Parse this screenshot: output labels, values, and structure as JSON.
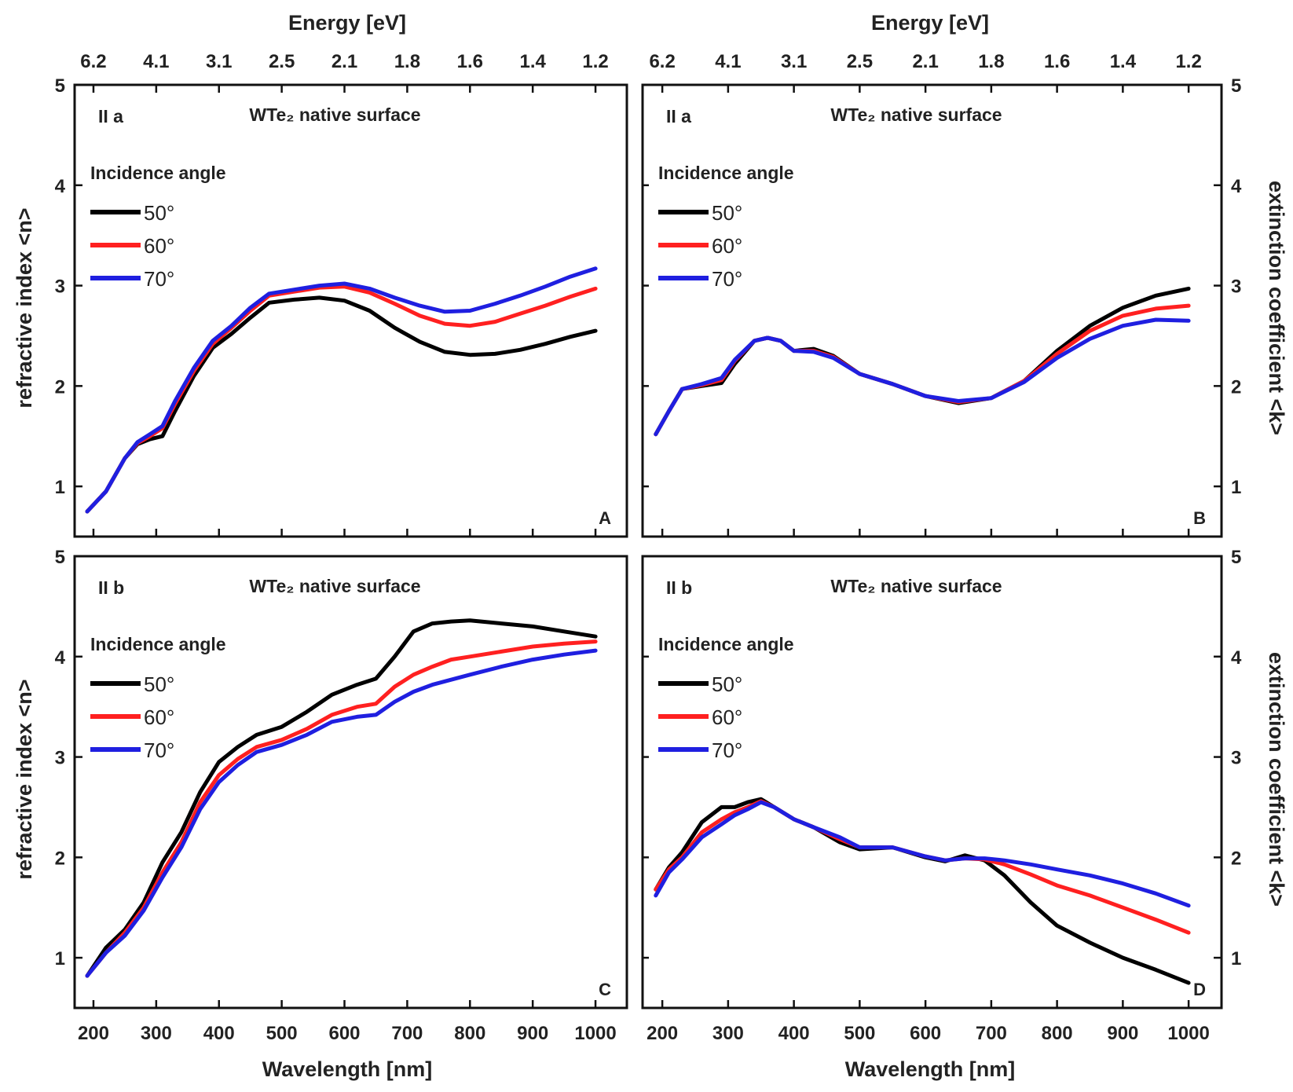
{
  "figure": {
    "top_axis_title": "Energy [eV]",
    "bottom_axis_title": "Wavelength [nm]",
    "left_axis_title": "refractive index <n>",
    "right_axis_title": "extinction coefficient <k>",
    "legend_title": "Incidence angle",
    "material_title": "WTe₂ native surface",
    "colors": {
      "50": "#000000",
      "60": "#ff2020",
      "70": "#1f1fe0"
    }
  },
  "chart_data": [
    {
      "id": "A",
      "type": "line",
      "panel_label": "II a",
      "letter": "A",
      "title": "WTe₂ native surface",
      "xlabel": "Wavelength [nm]",
      "ylabel": "refractive index <n>",
      "top_xlabel": "Energy [eV]",
      "xlim": [
        170,
        1050
      ],
      "ylim": [
        0.5,
        5
      ],
      "xticks": [
        200,
        300,
        400,
        500,
        600,
        700,
        800,
        900,
        1000
      ],
      "yticks": [
        1,
        2,
        3,
        4,
        5
      ],
      "top_ticks": [
        {
          "wavelength": 200,
          "label": "6.2"
        },
        {
          "wavelength": 300,
          "label": "4.1"
        },
        {
          "wavelength": 400,
          "label": "3.1"
        },
        {
          "wavelength": 500,
          "label": "2.5"
        },
        {
          "wavelength": 600,
          "label": "2.1"
        },
        {
          "wavelength": 700,
          "label": "1.8"
        },
        {
          "wavelength": 800,
          "label": "1.6"
        },
        {
          "wavelength": 900,
          "label": "1.4"
        },
        {
          "wavelength": 1000,
          "label": "1.2"
        }
      ],
      "legend_title": "Incidence angle",
      "series": [
        {
          "name": "50°",
          "x": [
            190,
            220,
            250,
            270,
            290,
            310,
            330,
            360,
            390,
            420,
            450,
            480,
            520,
            560,
            600,
            640,
            680,
            720,
            760,
            800,
            840,
            880,
            920,
            960,
            1000
          ],
          "y": [
            0.75,
            0.95,
            1.28,
            1.42,
            1.47,
            1.5,
            1.75,
            2.1,
            2.38,
            2.52,
            2.68,
            2.83,
            2.86,
            2.88,
            2.85,
            2.75,
            2.58,
            2.44,
            2.34,
            2.31,
            2.32,
            2.36,
            2.42,
            2.49,
            2.55
          ]
        },
        {
          "name": "60°",
          "x": [
            190,
            220,
            250,
            270,
            290,
            310,
            330,
            360,
            390,
            420,
            450,
            480,
            520,
            560,
            600,
            640,
            680,
            720,
            760,
            800,
            840,
            880,
            920,
            960,
            1000
          ],
          "y": [
            0.75,
            0.95,
            1.28,
            1.43,
            1.5,
            1.58,
            1.82,
            2.15,
            2.42,
            2.58,
            2.75,
            2.9,
            2.94,
            2.98,
            2.99,
            2.93,
            2.82,
            2.7,
            2.62,
            2.6,
            2.64,
            2.72,
            2.8,
            2.89,
            2.97
          ]
        },
        {
          "name": "70°",
          "x": [
            190,
            220,
            250,
            270,
            290,
            310,
            330,
            360,
            390,
            420,
            450,
            480,
            520,
            560,
            600,
            640,
            680,
            720,
            760,
            800,
            840,
            880,
            920,
            960,
            1000
          ],
          "y": [
            0.75,
            0.95,
            1.28,
            1.44,
            1.52,
            1.6,
            1.85,
            2.18,
            2.45,
            2.6,
            2.78,
            2.92,
            2.96,
            3.0,
            3.02,
            2.97,
            2.88,
            2.8,
            2.74,
            2.75,
            2.82,
            2.9,
            2.99,
            3.09,
            3.17
          ]
        }
      ]
    },
    {
      "id": "B",
      "type": "line",
      "panel_label": "II a",
      "letter": "B",
      "title": "WTe₂ native surface",
      "xlabel": "Wavelength [nm]",
      "ylabel": "extinction coefficient <k>",
      "top_xlabel": "Energy [eV]",
      "xlim": [
        170,
        1050
      ],
      "ylim": [
        0.5,
        5
      ],
      "xticks": [
        200,
        300,
        400,
        500,
        600,
        700,
        800,
        900,
        1000
      ],
      "yticks": [
        1,
        2,
        3,
        4,
        5
      ],
      "top_ticks": [
        {
          "wavelength": 200,
          "label": "6.2"
        },
        {
          "wavelength": 300,
          "label": "4.1"
        },
        {
          "wavelength": 400,
          "label": "3.1"
        },
        {
          "wavelength": 500,
          "label": "2.5"
        },
        {
          "wavelength": 600,
          "label": "2.1"
        },
        {
          "wavelength": 700,
          "label": "1.8"
        },
        {
          "wavelength": 800,
          "label": "1.6"
        },
        {
          "wavelength": 900,
          "label": "1.4"
        },
        {
          "wavelength": 1000,
          "label": "1.2"
        }
      ],
      "legend_title": "Incidence angle",
      "series": [
        {
          "name": "50°",
          "x": [
            190,
            210,
            230,
            260,
            290,
            310,
            340,
            360,
            380,
            400,
            430,
            460,
            500,
            550,
            600,
            650,
            700,
            750,
            800,
            850,
            900,
            950,
            1000
          ],
          "y": [
            1.52,
            1.75,
            1.97,
            2.0,
            2.03,
            2.22,
            2.45,
            2.48,
            2.45,
            2.35,
            2.37,
            2.3,
            2.12,
            2.02,
            1.9,
            1.83,
            1.88,
            2.05,
            2.35,
            2.6,
            2.78,
            2.9,
            2.97
          ]
        },
        {
          "name": "60°",
          "x": [
            190,
            210,
            230,
            260,
            290,
            310,
            340,
            360,
            380,
            400,
            430,
            460,
            500,
            550,
            600,
            650,
            700,
            750,
            800,
            850,
            900,
            950,
            1000
          ],
          "y": [
            1.52,
            1.75,
            1.97,
            2.01,
            2.06,
            2.25,
            2.45,
            2.48,
            2.45,
            2.35,
            2.35,
            2.29,
            2.12,
            2.02,
            1.9,
            1.84,
            1.88,
            2.05,
            2.32,
            2.55,
            2.7,
            2.77,
            2.8
          ]
        },
        {
          "name": "70°",
          "x": [
            190,
            210,
            230,
            260,
            290,
            310,
            340,
            360,
            380,
            400,
            430,
            460,
            500,
            550,
            600,
            650,
            700,
            750,
            800,
            850,
            900,
            950,
            1000
          ],
          "y": [
            1.52,
            1.75,
            1.97,
            2.02,
            2.08,
            2.26,
            2.45,
            2.48,
            2.45,
            2.35,
            2.34,
            2.28,
            2.12,
            2.02,
            1.9,
            1.85,
            1.88,
            2.04,
            2.28,
            2.47,
            2.6,
            2.66,
            2.65
          ]
        }
      ]
    },
    {
      "id": "C",
      "type": "line",
      "panel_label": "II b",
      "letter": "C",
      "title": "WTe₂ native surface",
      "xlabel": "Wavelength [nm]",
      "ylabel": "refractive index <n>",
      "xlim": [
        170,
        1050
      ],
      "ylim": [
        0.5,
        5
      ],
      "xticks": [
        200,
        300,
        400,
        500,
        600,
        700,
        800,
        900,
        1000
      ],
      "yticks": [
        1,
        2,
        3,
        4,
        5
      ],
      "legend_title": "Incidence angle",
      "series": [
        {
          "name": "50°",
          "x": [
            190,
            220,
            250,
            280,
            310,
            340,
            370,
            400,
            430,
            460,
            500,
            540,
            580,
            620,
            650,
            680,
            710,
            740,
            770,
            800,
            850,
            900,
            950,
            1000
          ],
          "y": [
            0.82,
            1.1,
            1.28,
            1.55,
            1.95,
            2.25,
            2.65,
            2.95,
            3.1,
            3.22,
            3.3,
            3.45,
            3.62,
            3.72,
            3.78,
            4.0,
            4.25,
            4.33,
            4.35,
            4.36,
            4.33,
            4.3,
            4.25,
            4.2
          ]
        },
        {
          "name": "60°",
          "x": [
            190,
            220,
            250,
            280,
            310,
            340,
            370,
            400,
            430,
            460,
            500,
            540,
            580,
            620,
            650,
            680,
            710,
            740,
            770,
            800,
            850,
            900,
            950,
            1000
          ],
          "y": [
            0.82,
            1.05,
            1.25,
            1.5,
            1.85,
            2.15,
            2.55,
            2.82,
            2.98,
            3.1,
            3.17,
            3.28,
            3.42,
            3.5,
            3.53,
            3.7,
            3.82,
            3.9,
            3.97,
            4.0,
            4.05,
            4.1,
            4.13,
            4.15
          ]
        },
        {
          "name": "70°",
          "x": [
            190,
            220,
            250,
            280,
            310,
            340,
            370,
            400,
            430,
            460,
            500,
            540,
            580,
            620,
            650,
            680,
            710,
            740,
            770,
            800,
            850,
            900,
            950,
            1000
          ],
          "y": [
            0.82,
            1.05,
            1.22,
            1.47,
            1.8,
            2.1,
            2.48,
            2.75,
            2.92,
            3.05,
            3.12,
            3.22,
            3.35,
            3.4,
            3.42,
            3.55,
            3.65,
            3.72,
            3.77,
            3.82,
            3.9,
            3.97,
            4.02,
            4.06
          ]
        }
      ]
    },
    {
      "id": "D",
      "type": "line",
      "panel_label": "II b",
      "letter": "D",
      "title": "WTe₂ native surface",
      "xlabel": "Wavelength [nm]",
      "ylabel": "extinction coefficient <k>",
      "xlim": [
        170,
        1050
      ],
      "ylim": [
        0.5,
        5
      ],
      "xticks": [
        200,
        300,
        400,
        500,
        600,
        700,
        800,
        900,
        1000
      ],
      "yticks": [
        1,
        2,
        3,
        4,
        5
      ],
      "legend_title": "Incidence angle",
      "series": [
        {
          "name": "50°",
          "x": [
            190,
            210,
            230,
            260,
            290,
            310,
            330,
            350,
            370,
            400,
            430,
            470,
            500,
            550,
            600,
            630,
            660,
            690,
            720,
            760,
            800,
            850,
            900,
            950,
            1000
          ],
          "y": [
            1.68,
            1.9,
            2.05,
            2.35,
            2.5,
            2.5,
            2.55,
            2.58,
            2.5,
            2.38,
            2.3,
            2.15,
            2.08,
            2.1,
            2.0,
            1.96,
            2.02,
            1.97,
            1.82,
            1.55,
            1.32,
            1.15,
            1.0,
            0.88,
            0.75
          ]
        },
        {
          "name": "60°",
          "x": [
            190,
            210,
            230,
            260,
            290,
            310,
            330,
            350,
            370,
            400,
            430,
            470,
            500,
            550,
            600,
            630,
            660,
            690,
            720,
            760,
            800,
            850,
            900,
            950,
            1000
          ],
          "y": [
            1.68,
            1.88,
            2.0,
            2.25,
            2.38,
            2.45,
            2.5,
            2.56,
            2.5,
            2.38,
            2.3,
            2.18,
            2.1,
            2.1,
            2.01,
            1.97,
            1.99,
            1.98,
            1.93,
            1.83,
            1.72,
            1.62,
            1.5,
            1.38,
            1.25
          ]
        },
        {
          "name": "70°",
          "x": [
            190,
            210,
            230,
            260,
            290,
            310,
            330,
            350,
            370,
            400,
            430,
            470,
            500,
            550,
            600,
            630,
            660,
            690,
            720,
            760,
            800,
            850,
            900,
            950,
            1000
          ],
          "y": [
            1.62,
            1.85,
            1.98,
            2.2,
            2.33,
            2.42,
            2.48,
            2.55,
            2.5,
            2.38,
            2.3,
            2.2,
            2.1,
            2.1,
            2.01,
            1.97,
            1.99,
            1.99,
            1.97,
            1.93,
            1.88,
            1.82,
            1.74,
            1.64,
            1.52
          ]
        }
      ]
    }
  ]
}
